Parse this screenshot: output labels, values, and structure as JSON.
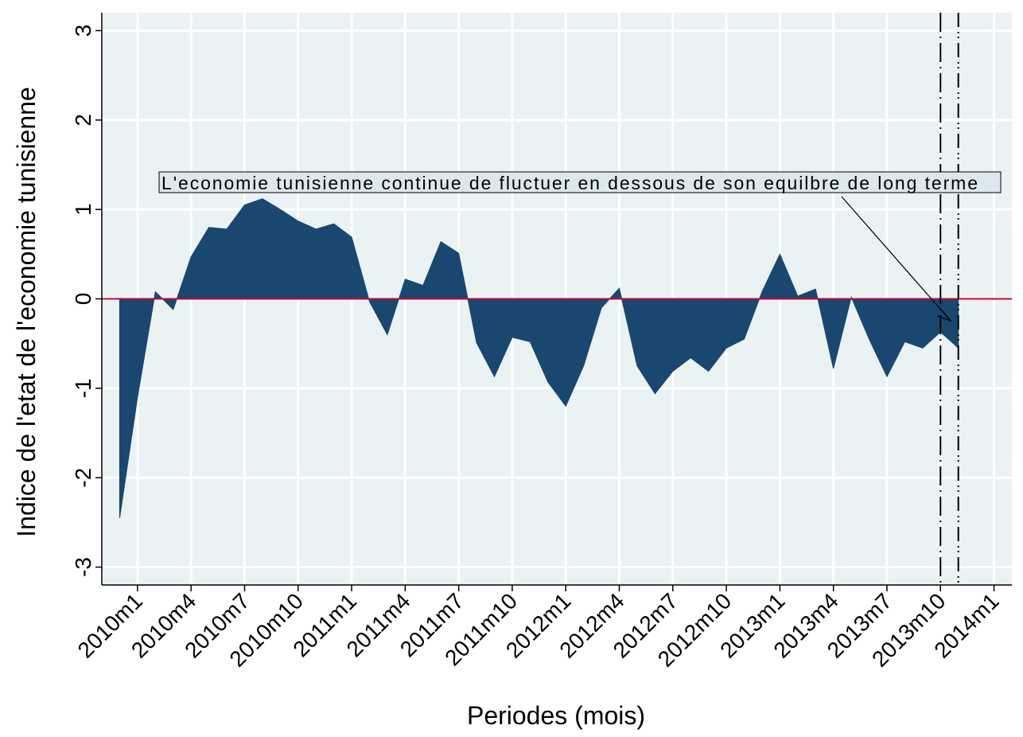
{
  "chart_data": {
    "type": "area",
    "xlabel": "Periodes (mois)",
    "ylabel": "Indice de l'etat de l'economie tunisienne",
    "annotation": "L'economie tunisienne continue de fluctuer en dessous de son equilbre de long terme",
    "x": [
      599,
      600,
      601,
      602,
      603,
      604,
      605,
      606,
      607,
      608,
      609,
      610,
      611,
      612,
      613,
      614,
      615,
      616,
      617,
      618,
      619,
      620,
      621,
      622,
      623,
      624,
      625,
      626,
      627,
      628,
      629,
      630,
      631,
      632,
      633,
      634,
      635,
      636,
      637,
      638,
      639,
      640,
      641,
      642,
      643,
      644,
      645,
      646
    ],
    "values": [
      -2.45,
      -1.1,
      0.08,
      -0.12,
      0.47,
      0.8,
      0.78,
      1.05,
      1.12,
      1.0,
      0.87,
      0.78,
      0.84,
      0.69,
      -0.03,
      -0.4,
      0.22,
      0.15,
      0.64,
      0.51,
      -0.49,
      -0.87,
      -0.43,
      -0.48,
      -0.93,
      -1.2,
      -0.75,
      -0.1,
      0.12,
      -0.75,
      -1.06,
      -0.81,
      -0.66,
      -0.81,
      -0.55,
      -0.45,
      0.08,
      0.5,
      0.03,
      0.11,
      -0.78,
      0.02,
      -0.45,
      -0.87,
      -0.48,
      -0.55,
      -0.37,
      -0.55
    ],
    "color": "#1a476f",
    "xlim": [
      598,
      649
    ],
    "xticks": [
      {
        "value": 600,
        "label": "2010m1"
      },
      {
        "value": 603,
        "label": "2010m4"
      },
      {
        "value": 606,
        "label": "2010m7"
      },
      {
        "value": 609,
        "label": "2010m10"
      },
      {
        "value": 612,
        "label": "2011m1"
      },
      {
        "value": 615,
        "label": "2011m4"
      },
      {
        "value": 618,
        "label": "2011m7"
      },
      {
        "value": 621,
        "label": "2011m10"
      },
      {
        "value": 624,
        "label": "2012m1"
      },
      {
        "value": 627,
        "label": "2012m4"
      },
      {
        "value": 630,
        "label": "2012m7"
      },
      {
        "value": 633,
        "label": "2012m10"
      },
      {
        "value": 636,
        "label": "2013m1"
      },
      {
        "value": 639,
        "label": "2013m4"
      },
      {
        "value": 642,
        "label": "2013m7"
      },
      {
        "value": 645,
        "label": "2013m10"
      },
      {
        "value": 648,
        "label": "2014m1"
      }
    ],
    "ylim": [
      -3.2,
      3.2
    ],
    "yticks": [
      -3,
      -2,
      -1,
      0,
      1,
      2,
      3
    ],
    "grid": true,
    "yline": 0,
    "yline_color": "#c10534",
    "xlines": [
      645,
      646
    ]
  }
}
